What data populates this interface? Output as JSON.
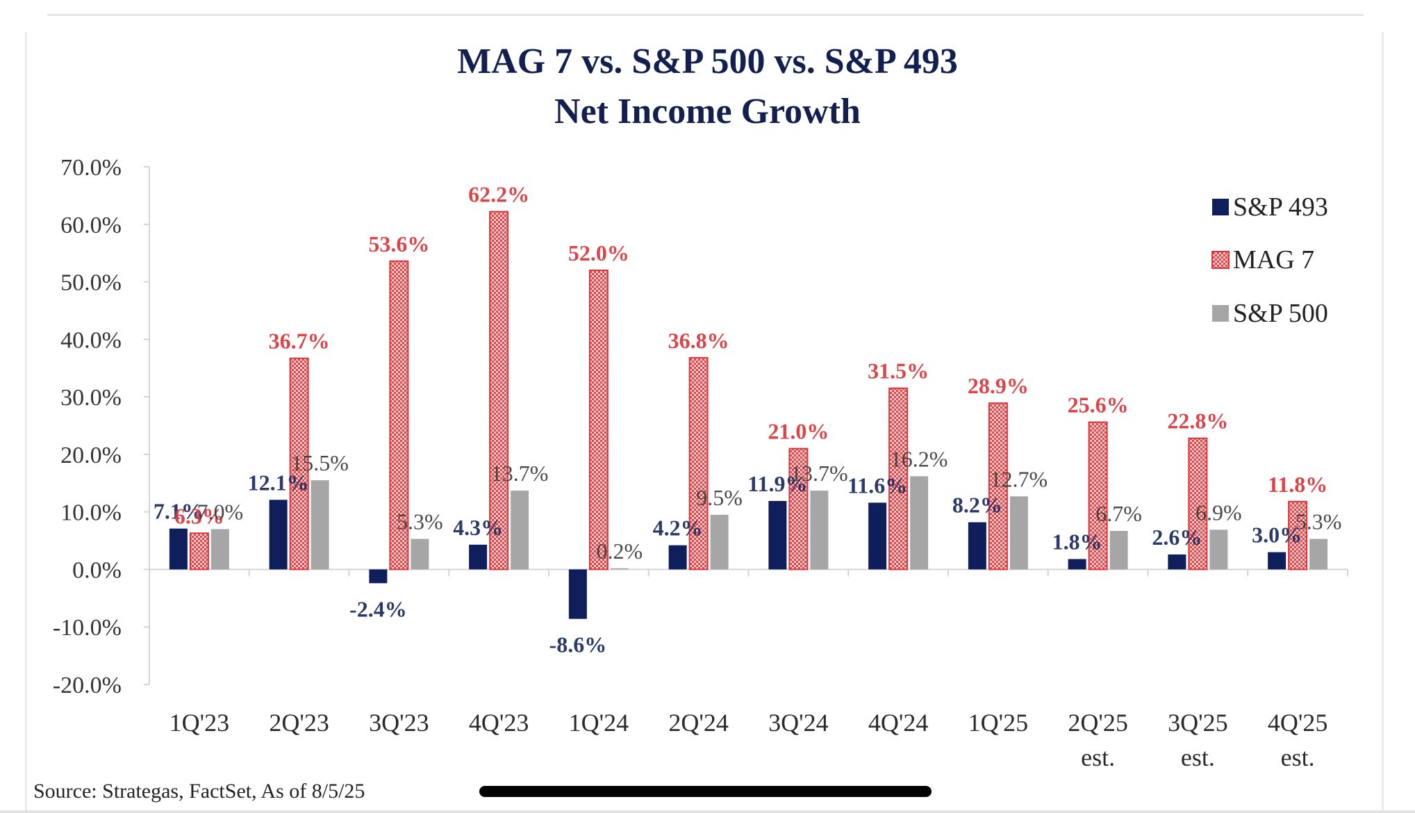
{
  "chart_data": {
    "type": "bar",
    "title": "MAG 7 vs. S&P 500 vs. S&P 493",
    "subtitle": "Net Income Growth",
    "xlabel": "",
    "ylabel": "",
    "ylim": [
      -20,
      70
    ],
    "ytick_step": 10,
    "yticks": [
      "70.0%",
      "60.0%",
      "50.0%",
      "40.0%",
      "30.0%",
      "20.0%",
      "10.0%",
      "0.0%",
      "-10.0%",
      "-20.0%"
    ],
    "grid": false,
    "legend_position": "top-right",
    "categories": [
      "1Q'23",
      "2Q'23",
      "3Q'23",
      "4Q'23",
      "1Q'24",
      "2Q'24",
      "3Q'24",
      "4Q'24",
      "1Q'25",
      "2Q'25",
      "3Q'25",
      "4Q'25"
    ],
    "category_sublabels": [
      "",
      "",
      "",
      "",
      "",
      "",
      "",
      "",
      "",
      "est.",
      "est.",
      "est."
    ],
    "series": [
      {
        "name": "S&P 493",
        "color": "#0f1f5c",
        "label_color": "#1b2a5e",
        "pattern": "solid",
        "values": [
          7.1,
          12.1,
          -2.4,
          4.3,
          -8.6,
          4.2,
          11.9,
          11.6,
          8.2,
          1.8,
          2.6,
          3.0
        ],
        "labels": [
          "7.1%",
          "12.1%",
          "-2.4%",
          "4.3%",
          "-8.6%",
          "4.2%",
          "11.9%",
          "11.6%",
          "8.2%",
          "1.8%",
          "2.6%",
          "3.0%"
        ]
      },
      {
        "name": "MAG 7",
        "color": "#e0474c",
        "label_color": "#d9363b",
        "pattern": "checker",
        "values": [
          6.3,
          36.7,
          53.6,
          62.2,
          52.0,
          36.8,
          21.0,
          31.5,
          28.9,
          25.6,
          22.8,
          11.8
        ],
        "labels": [
          "6.3%",
          "36.7%",
          "53.6%",
          "62.2%",
          "52.0%",
          "36.8%",
          "21.0%",
          "31.5%",
          "28.9%",
          "25.6%",
          "22.8%",
          "11.8%"
        ]
      },
      {
        "name": "S&P 500",
        "color": "#a6a6a6",
        "label_color": "#3a3a3a",
        "pattern": "solid",
        "values": [
          7.0,
          15.5,
          5.3,
          13.7,
          0.2,
          9.5,
          13.7,
          16.2,
          12.7,
          6.7,
          6.9,
          5.3
        ],
        "labels": [
          "7.0%",
          "15.5%",
          "5.3%",
          "13.7%",
          "0.2%",
          "9.5%",
          "13.7%",
          "16.2%",
          "12.7%",
          "6.7%",
          "6.9%",
          "5.3%"
        ]
      }
    ],
    "source": "Source: Strategas, FactSet, As of 8/5/25"
  }
}
